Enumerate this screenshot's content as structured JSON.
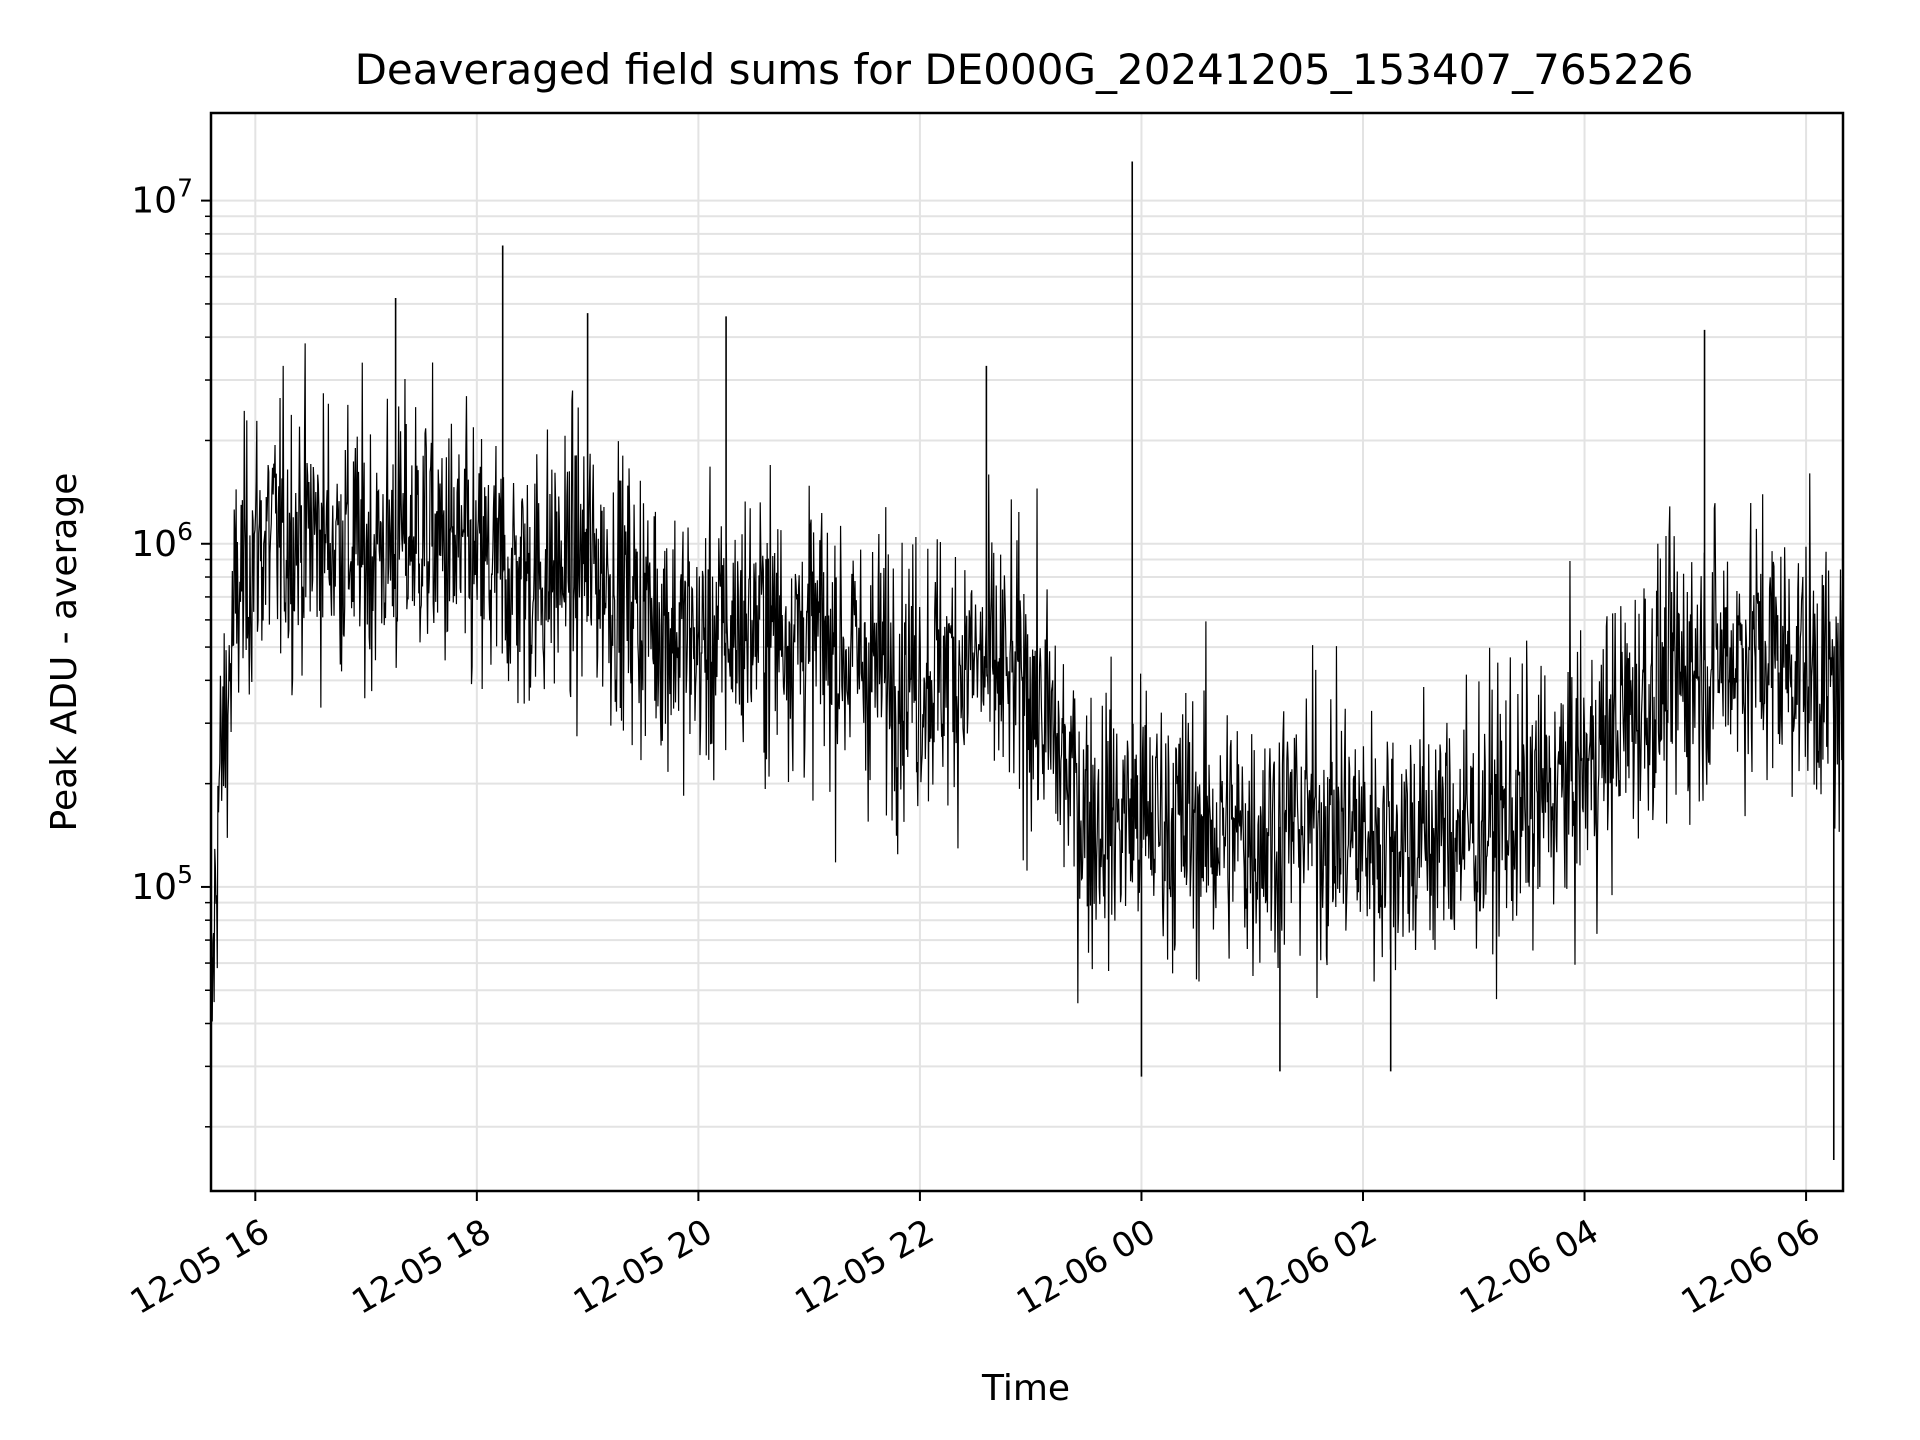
{
  "chart_data": {
    "type": "line",
    "title": "Deaveraged field sums for DE000G_20241205_153407_765226",
    "xlabel": "Time",
    "ylabel": "Peak ADU - average",
    "yscale": "log",
    "grid": true,
    "legend": "none",
    "xlim": [
      "2024-12-05 15:36",
      "2024-12-06 06:20"
    ],
    "ylim": [
      13000,
      18000000
    ],
    "x_ticks": [
      "12-05 16",
      "12-05 18",
      "12-05 20",
      "12-05 22",
      "12-06 00",
      "12-06 02",
      "12-06 04",
      "12-06 06"
    ],
    "y_ticks": [
      {
        "base": "10",
        "exp": "5",
        "value": 100000
      },
      {
        "base": "10",
        "exp": "6",
        "value": 1000000
      },
      {
        "base": "10",
        "exp": "7",
        "value": 10000000
      }
    ],
    "series": [
      {
        "color": "#000000",
        "points": [
          [
            "2024-12-05 15:36",
            35000
          ],
          [
            "2024-12-05 15:40",
            180000
          ],
          [
            "2024-12-05 15:50",
            700000
          ],
          [
            "2024-12-05 16:00",
            1000000
          ],
          [
            "2024-12-05 16:30",
            1100000
          ],
          [
            "2024-12-05 17:00",
            950000
          ],
          [
            "2024-12-05 17:30",
            1100000
          ],
          [
            "2024-12-05 18:00",
            850000
          ],
          [
            "2024-12-05 18:30",
            800000
          ],
          [
            "2024-12-05 19:00",
            900000
          ],
          [
            "2024-12-05 19:30",
            650000
          ],
          [
            "2024-12-05 20:00",
            500000
          ],
          [
            "2024-12-05 20:30",
            600000
          ],
          [
            "2024-12-05 21:00",
            550000
          ],
          [
            "2024-12-05 21:30",
            450000
          ],
          [
            "2024-12-05 22:00",
            420000
          ],
          [
            "2024-12-05 22:30",
            450000
          ],
          [
            "2024-12-05 23:00",
            380000
          ],
          [
            "2024-12-05 23:30",
            160000
          ],
          [
            "2024-12-06 00:00",
            160000
          ],
          [
            "2024-12-06 00:30",
            150000
          ],
          [
            "2024-12-06 01:00",
            140000
          ],
          [
            "2024-12-06 01:30",
            160000
          ],
          [
            "2024-12-06 02:00",
            140000
          ],
          [
            "2024-12-06 02:30",
            140000
          ],
          [
            "2024-12-06 03:00",
            150000
          ],
          [
            "2024-12-06 03:30",
            170000
          ],
          [
            "2024-12-06 04:00",
            220000
          ],
          [
            "2024-12-06 04:30",
            350000
          ],
          [
            "2024-12-06 05:00",
            450000
          ],
          [
            "2024-12-06 05:30",
            500000
          ],
          [
            "2024-12-06 06:00",
            450000
          ],
          [
            "2024-12-06 06:20",
            350000
          ]
        ],
        "spikes": [
          [
            "2024-12-05 17:16",
            5200000
          ],
          [
            "2024-12-05 18:14",
            7400000
          ],
          [
            "2024-12-05 19:00",
            4700000
          ],
          [
            "2024-12-05 20:15",
            4600000
          ],
          [
            "2024-12-05 22:36",
            3300000
          ],
          [
            "2024-12-05 23:55",
            13000000
          ],
          [
            "2024-12-06 05:05",
            4200000
          ],
          [
            "2024-12-06 00:00",
            28000
          ],
          [
            "2024-12-06 01:15",
            29000
          ],
          [
            "2024-12-06 02:15",
            29000
          ],
          [
            "2024-12-06 06:15",
            16000
          ]
        ]
      }
    ]
  }
}
